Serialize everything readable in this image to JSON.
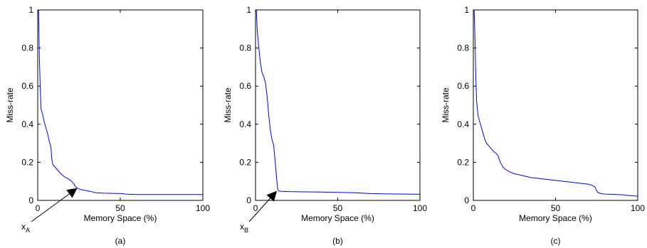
{
  "chart_data": [
    {
      "type": "line",
      "subplot_label": "(a)",
      "xlabel": "Memory Space (%)",
      "ylabel": "Miss-rate",
      "xlim": [
        0,
        100
      ],
      "ylim": [
        0,
        1
      ],
      "xticks": [
        0,
        50,
        100
      ],
      "yticks": [
        0,
        0.2,
        0.4,
        0.6,
        0.8,
        1
      ],
      "grid": false,
      "series_color": "#0000ff",
      "series": [
        {
          "x": [
            0.5,
            1,
            1.5,
            2,
            3,
            4,
            5,
            6,
            7,
            8,
            8.5,
            9,
            10,
            12,
            14,
            16,
            18,
            20,
            21,
            22,
            23,
            25,
            27,
            30,
            33,
            35,
            40,
            45,
            50,
            52,
            53,
            55,
            60,
            70,
            80,
            90,
            100
          ],
          "y": [
            1,
            0.75,
            0.6,
            0.48,
            0.45,
            0.41,
            0.38,
            0.35,
            0.31,
            0.28,
            0.22,
            0.19,
            0.18,
            0.16,
            0.14,
            0.125,
            0.115,
            0.105,
            0.095,
            0.085,
            0.07,
            0.06,
            0.055,
            0.05,
            0.045,
            0.04,
            0.038,
            0.037,
            0.036,
            0.035,
            0.033,
            0.032,
            0.031,
            0.031,
            0.031,
            0.031,
            0.031
          ]
        }
      ],
      "annotation": {
        "label_main": "x",
        "label_sub": "A",
        "points_to": [
          24,
          0.065
        ]
      }
    },
    {
      "type": "line",
      "subplot_label": "(b)",
      "xlabel": "Memory Space (%)",
      "ylabel": "Miss-rate",
      "xlim": [
        0,
        100
      ],
      "ylim": [
        0,
        1
      ],
      "xticks": [
        0,
        50,
        100
      ],
      "yticks": [
        0,
        0.2,
        0.4,
        0.6,
        0.8,
        1
      ],
      "grid": false,
      "series_color": "#0000ff",
      "series": [
        {
          "x": [
            0.5,
            1,
            2,
            3,
            4,
            5,
            6,
            7,
            8,
            9,
            10,
            11,
            12,
            13,
            13.5,
            14,
            15,
            20,
            30,
            40,
            50,
            60,
            65,
            70,
            80,
            90,
            100
          ],
          "y": [
            1,
            0.9,
            0.8,
            0.72,
            0.67,
            0.65,
            0.62,
            0.55,
            0.45,
            0.37,
            0.32,
            0.29,
            0.2,
            0.1,
            0.06,
            0.05,
            0.048,
            0.046,
            0.045,
            0.044,
            0.042,
            0.04,
            0.038,
            0.036,
            0.034,
            0.033,
            0.032
          ]
        }
      ],
      "annotation": {
        "label_main": "x",
        "label_sub": "B",
        "points_to": [
          13,
          0.05
        ]
      }
    },
    {
      "type": "line",
      "subplot_label": "(c)",
      "xlabel": "Memory Space (%)",
      "ylabel": "Miss-rate",
      "xlim": [
        0,
        100
      ],
      "ylim": [
        0,
        1
      ],
      "xticks": [
        0,
        50,
        100
      ],
      "yticks": [
        0,
        0.2,
        0.4,
        0.6,
        0.8,
        1
      ],
      "grid": false,
      "series_color": "#0000ff",
      "series": [
        {
          "x": [
            0.5,
            1,
            1.5,
            2,
            3,
            4,
            5,
            6,
            7,
            8,
            10,
            12,
            14,
            15,
            16,
            17,
            18,
            20,
            22,
            25,
            30,
            35,
            40,
            45,
            50,
            55,
            60,
            65,
            70,
            72,
            74,
            75,
            76,
            78,
            80,
            90,
            95,
            100
          ],
          "y": [
            1,
            0.85,
            0.65,
            0.52,
            0.44,
            0.41,
            0.38,
            0.35,
            0.32,
            0.3,
            0.28,
            0.26,
            0.245,
            0.235,
            0.21,
            0.19,
            0.175,
            0.16,
            0.15,
            0.14,
            0.13,
            0.12,
            0.115,
            0.11,
            0.105,
            0.1,
            0.095,
            0.09,
            0.085,
            0.08,
            0.07,
            0.05,
            0.04,
            0.035,
            0.033,
            0.03,
            0.025,
            0.022
          ]
        }
      ]
    }
  ]
}
